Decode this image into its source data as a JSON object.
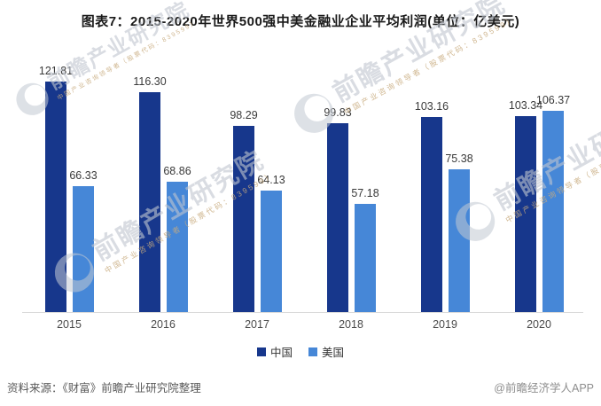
{
  "chart_data": {
    "type": "bar",
    "title": "图表7：2015-2020年世界500强中美金融业企业平均利润(单位：亿美元)",
    "unit": "亿美元",
    "categories": [
      "2015",
      "2016",
      "2017",
      "2018",
      "2019",
      "2020"
    ],
    "series": [
      {
        "name": "中国",
        "color": "#17378c",
        "values": [
          121.81,
          116.3,
          98.29,
          99.83,
          103.16,
          103.34
        ]
      },
      {
        "name": "美国",
        "color": "#4687d7",
        "values": [
          66.33,
          68.86,
          64.13,
          57.18,
          75.38,
          106.37
        ]
      }
    ],
    "ylim": [
      0,
      130
    ],
    "grid": false,
    "axis_visible": "x-only",
    "legend_position": "bottom",
    "value_labels": true,
    "value_label_decimals": 2
  },
  "footer": {
    "source": "资料来源：《财富》前瞻产业研究院整理",
    "credit": "@前瞻经济学人APP"
  },
  "watermark": {
    "brand": "前瞻产业研究院",
    "tagline": "中国产业咨询领导者（股票代码：839599）",
    "logo_icon": "qianzhan-crescent-logo-icon",
    "text_color": "#c0c6d0",
    "tagline_color": "#c8ab7e",
    "logo_color": "#c3c9d3"
  }
}
